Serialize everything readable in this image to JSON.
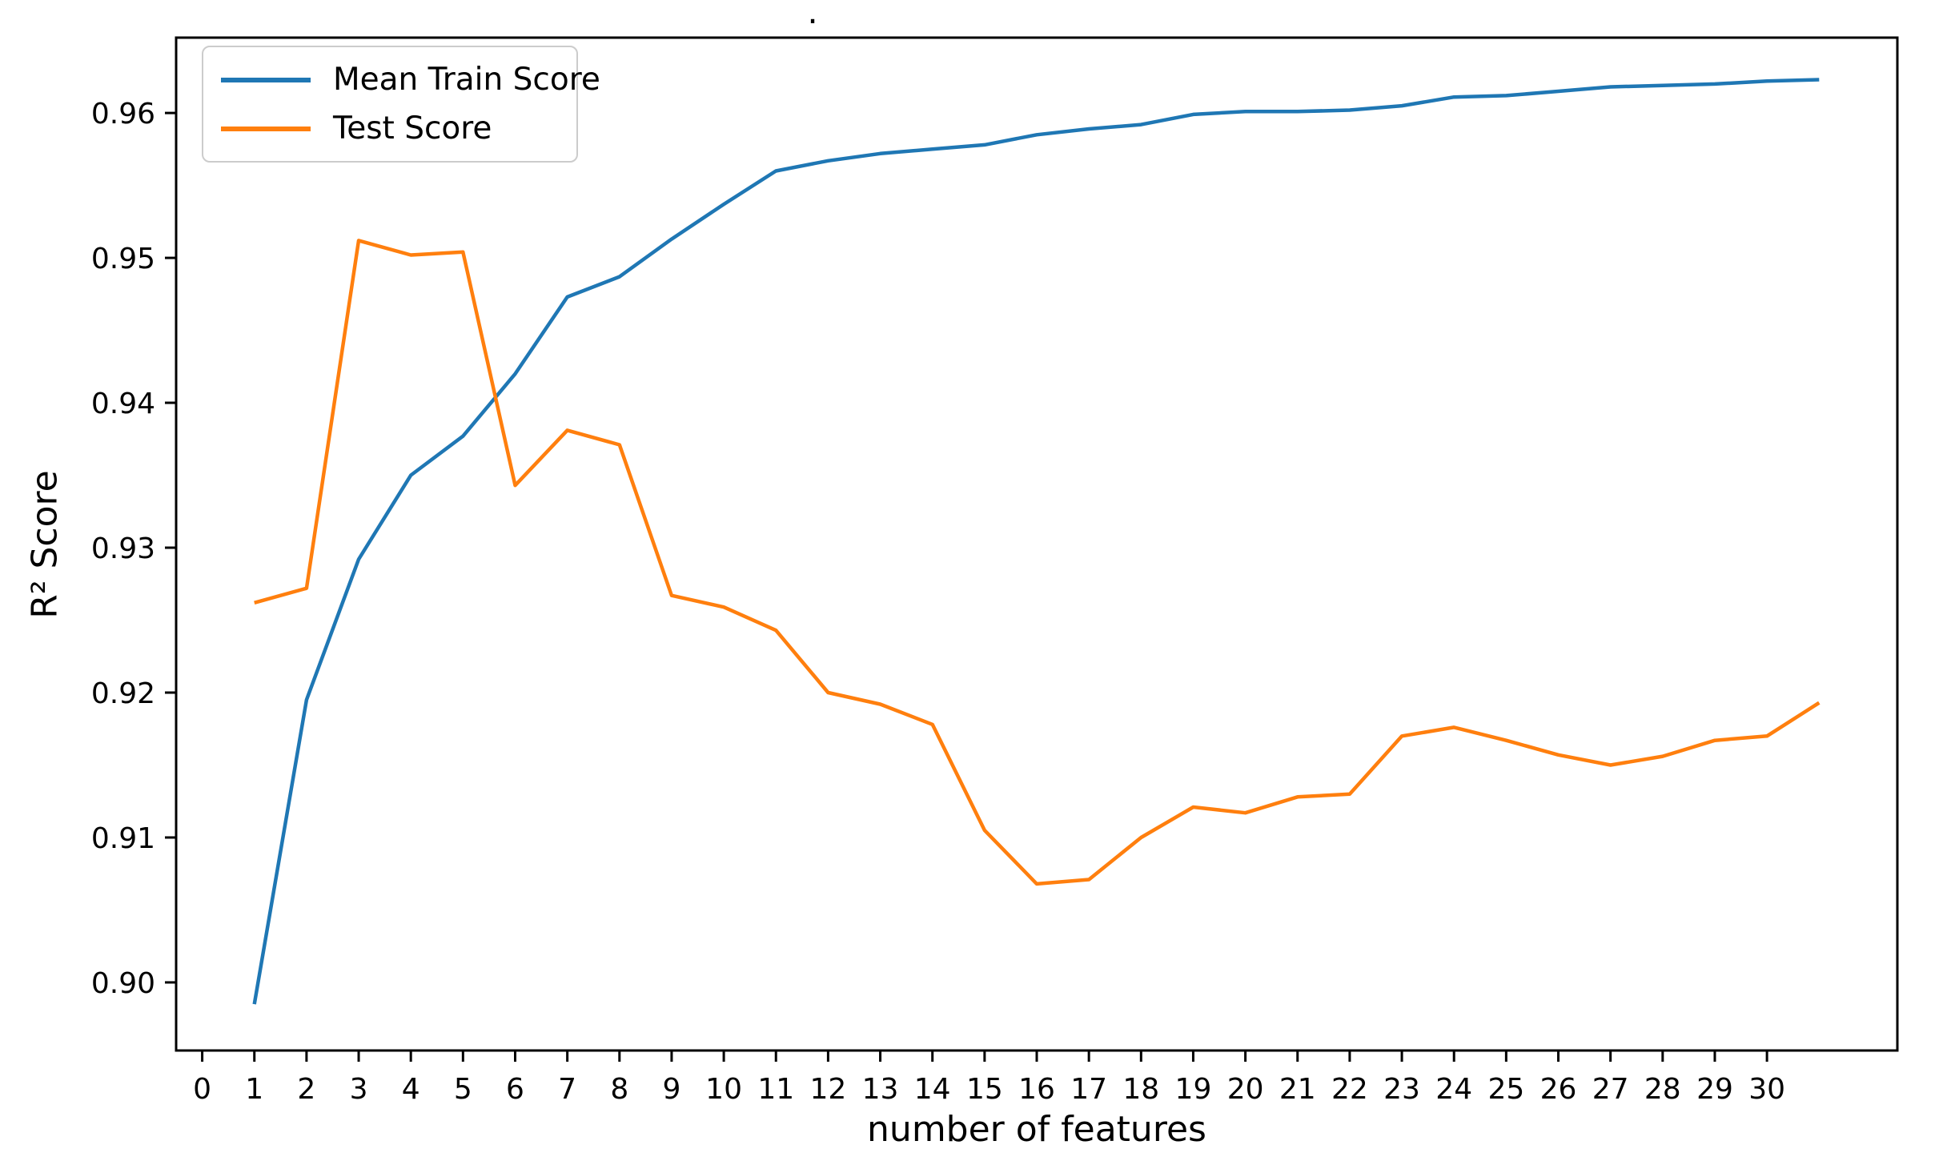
{
  "page": {
    "background": "#ffffff"
  },
  "chart_data": {
    "type": "line",
    "title": ".",
    "xlabel": "number of features",
    "ylabel": "R² Score",
    "x": [
      1,
      2,
      3,
      4,
      5,
      6,
      7,
      8,
      9,
      10,
      11,
      12,
      13,
      14,
      15,
      16,
      17,
      18,
      19,
      20,
      21,
      22,
      23,
      24,
      25,
      26,
      27,
      28,
      29,
      30,
      31
    ],
    "series": [
      {
        "name": "Mean Train Score",
        "color": "#1f77b4",
        "values": [
          0.8985,
          0.9195,
          0.9292,
          0.935,
          0.9377,
          0.942,
          0.9473,
          0.9487,
          0.9513,
          0.9537,
          0.956,
          0.9567,
          0.9572,
          0.9575,
          0.9578,
          0.9585,
          0.9589,
          0.9592,
          0.9599,
          0.9601,
          0.9601,
          0.9602,
          0.9605,
          0.9611,
          0.9612,
          0.9615,
          0.9618,
          0.9619,
          0.962,
          0.9622,
          0.9623
        ]
      },
      {
        "name": "Test Score",
        "color": "#ff7f0e",
        "values": [
          0.9262,
          0.9272,
          0.9512,
          0.9502,
          0.9504,
          0.9343,
          0.9381,
          0.9371,
          0.9267,
          0.9259,
          0.9243,
          0.92,
          0.9192,
          0.9178,
          0.9105,
          0.9068,
          0.9071,
          0.91,
          0.9121,
          0.9117,
          0.9128,
          0.913,
          0.917,
          0.9176,
          0.9167,
          0.9157,
          0.915,
          0.9156,
          0.9167,
          0.917,
          0.9193
        ]
      }
    ],
    "x_ticks": [
      "0",
      "1",
      "2",
      "3",
      "4",
      "5",
      "6",
      "7",
      "8",
      "9",
      "10",
      "11",
      "12",
      "13",
      "14",
      "15",
      "16",
      "17",
      "18",
      "19",
      "20",
      "21",
      "22",
      "23",
      "24",
      "25",
      "26",
      "27",
      "28",
      "29",
      "30"
    ],
    "y_ticks": [
      "0.90",
      "0.91",
      "0.92",
      "0.93",
      "0.94",
      "0.95",
      "0.96"
    ],
    "xlim": [
      -0.5,
      32.5
    ],
    "ylim": [
      0.8953,
      0.9652
    ],
    "grid": false,
    "legend_position": "upper left",
    "axis_color": "#000000",
    "text_color": "#000000"
  }
}
